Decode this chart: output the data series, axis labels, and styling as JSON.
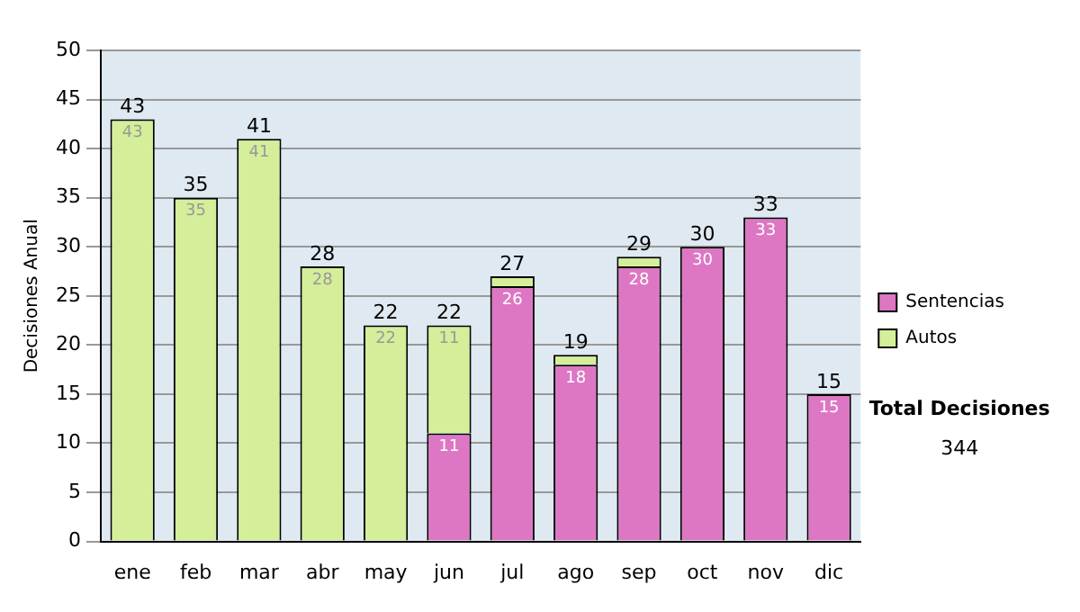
{
  "chart_data": {
    "type": "bar",
    "stacked": true,
    "ylabel": "Decisiones Anual",
    "categories": [
      "ene",
      "feb",
      "mar",
      "abr",
      "may",
      "jun",
      "jul",
      "ago",
      "sep",
      "oct",
      "nov",
      "dic"
    ],
    "series": [
      {
        "name": "Sentencias",
        "color": "#dd77c4",
        "values": [
          null,
          null,
          null,
          null,
          null,
          11,
          26,
          18,
          28,
          30,
          33,
          15
        ],
        "value_labels": [
          null,
          null,
          null,
          null,
          null,
          "11",
          "26",
          "18",
          "28",
          "30",
          "33",
          "15"
        ]
      },
      {
        "name": "Autos",
        "color": "#d5ee9a",
        "values": [
          43,
          35,
          41,
          28,
          22,
          11,
          1,
          1,
          1,
          null,
          null,
          null
        ],
        "value_labels": [
          "43",
          "35",
          "41",
          "28",
          "22",
          "11",
          null,
          null,
          null,
          null,
          null,
          null
        ]
      }
    ],
    "totals": [
      "43",
      "35",
      "41",
      "28",
      "22",
      "22",
      "27",
      "19",
      "29",
      "30",
      "33",
      "15"
    ],
    "ylim": [
      0,
      50
    ],
    "yticks": [
      0,
      5,
      10,
      15,
      20,
      25,
      30,
      35,
      40,
      45,
      50
    ],
    "grid": "y",
    "legend": "right",
    "annotations": [
      "Total Decisiones",
      "344"
    ]
  }
}
